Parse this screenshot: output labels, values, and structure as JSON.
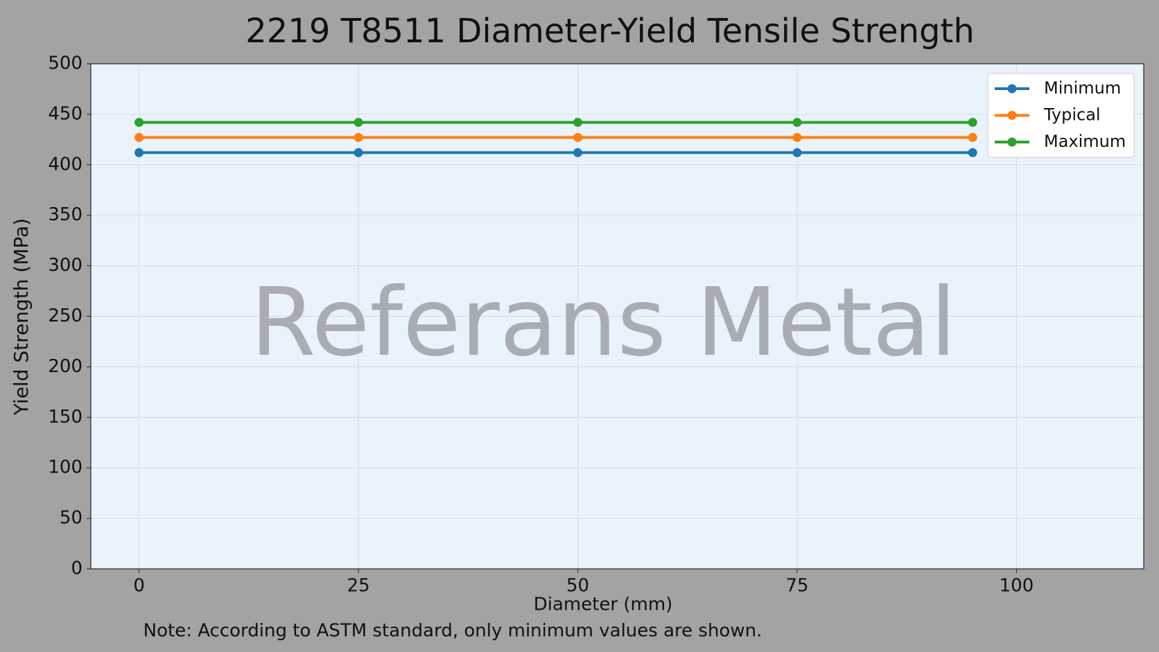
{
  "chart_data": {
    "type": "line",
    "title": "2219 T8511 Diameter-Yield Tensile Strength",
    "x_label": "Diameter (mm)",
    "y_label": "Yield Strength (MPa)",
    "note": "Note: According to ASTM standard, only minimum values are shown.",
    "watermark": "Referans Metal",
    "x": [
      0,
      25,
      50,
      75,
      95
    ],
    "series": [
      {
        "name": "Minimum",
        "color": "#1f77b4",
        "values": [
          412,
          412,
          412,
          412,
          412
        ]
      },
      {
        "name": "Typical",
        "color": "#ff7f0e",
        "values": [
          427,
          427,
          427,
          427,
          427
        ]
      },
      {
        "name": "Maximum",
        "color": "#2ca02c",
        "values": [
          442,
          442,
          442,
          442,
          442
        ]
      }
    ],
    "xlim": [
      -5.5,
      114.5
    ],
    "xticks": [
      0,
      25,
      50,
      75,
      100
    ],
    "ylim": [
      0,
      500
    ],
    "yticks": [
      0,
      50,
      100,
      150,
      200,
      250,
      300,
      350,
      400,
      450,
      500
    ],
    "grid": true,
    "legend": "upper right"
  }
}
